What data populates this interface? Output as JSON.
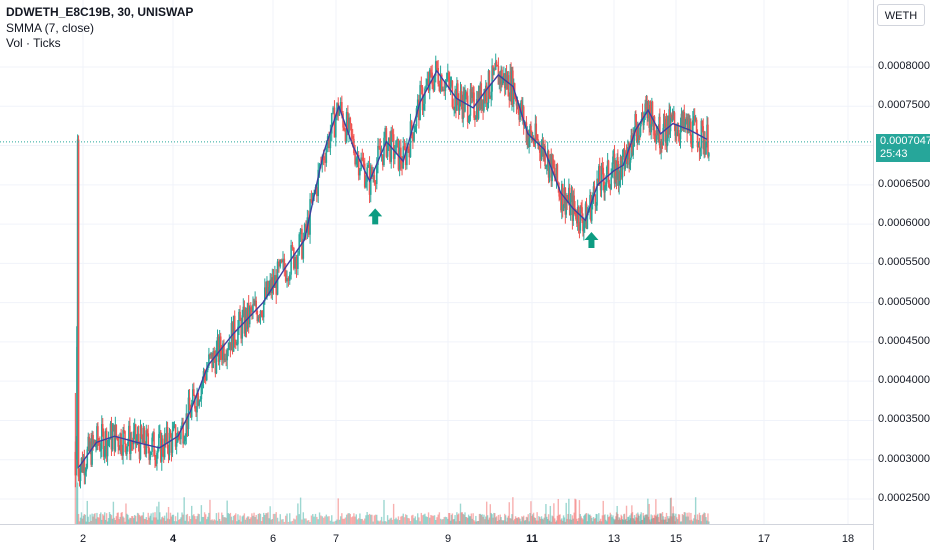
{
  "header": {
    "symbol_line": "DDWETH_E8C19B, 30, UNISWAP",
    "indicator_smma": "SMMA (7, close)",
    "indicator_vol": "Vol · Ticks",
    "pair_button": "WETH"
  },
  "colors": {
    "up": "#26a69a",
    "down": "#ef5350",
    "smma": "#3f3f9f",
    "grid": "#f0f3fa",
    "arrow": "#0d9c82"
  },
  "chart_data": {
    "type": "candlestick",
    "title": "DDWETH_E8C19B, 30, UNISWAP",
    "ylim": [
      0.000215,
      0.000865
    ],
    "y_ticks": [
      "0.0008000",
      "0.0007500",
      "0.0007000",
      "0.0006500",
      "0.0006000",
      "0.0005500",
      "0.0005000",
      "0.0004500",
      "0.0004000",
      "0.0003500",
      "0.0003000",
      "0.0002500"
    ],
    "x_ticks": [
      {
        "label": "2",
        "day": 2,
        "bold": false
      },
      {
        "label": "4",
        "day": 4,
        "bold": true
      },
      {
        "label": "6",
        "day": 6,
        "bold": false
      },
      {
        "label": "7",
        "day": 7,
        "bold": false
      },
      {
        "label": "9",
        "day": 9,
        "bold": false
      },
      {
        "label": "11",
        "day": 11,
        "bold": true
      },
      {
        "label": "13",
        "day": 13,
        "bold": false
      },
      {
        "label": "15",
        "day": 15,
        "bold": false
      },
      {
        "label": "17",
        "day": 17,
        "bold": false
      },
      {
        "label": "18",
        "day": 18,
        "bold": false
      }
    ],
    "last_price": "0.0007047",
    "countdown": "25:43",
    "smma": [
      [
        1.9,
        0.00029
      ],
      [
        2.3,
        0.000322
      ],
      [
        2.7,
        0.00033
      ],
      [
        3.2,
        0.000322
      ],
      [
        3.7,
        0.000315
      ],
      [
        4.1,
        0.00033
      ],
      [
        4.35,
        0.000362
      ],
      [
        4.7,
        0.00042
      ],
      [
        5.2,
        0.00046
      ],
      [
        5.8,
        0.0005
      ],
      [
        6.2,
        0.000545
      ],
      [
        6.5,
        0.00058
      ],
      [
        6.8,
        0.00069
      ],
      [
        7.05,
        0.00075
      ],
      [
        7.3,
        0.0007
      ],
      [
        7.6,
        0.000655
      ],
      [
        7.9,
        0.000705
      ],
      [
        8.2,
        0.00068
      ],
      [
        8.5,
        0.000755
      ],
      [
        8.8,
        0.000795
      ],
      [
        9.2,
        0.00076
      ],
      [
        9.6,
        0.000748
      ],
      [
        9.9,
        0.00077
      ],
      [
        10.2,
        0.00079
      ],
      [
        10.55,
        0.000775
      ],
      [
        10.9,
        0.000715
      ],
      [
        11.3,
        0.000695
      ],
      [
        11.7,
        0.00064
      ],
      [
        12.0,
        0.00062
      ],
      [
        12.3,
        0.000605
      ],
      [
        12.6,
        0.00065
      ],
      [
        13.0,
        0.000668
      ],
      [
        13.3,
        0.000675
      ],
      [
        13.7,
        0.00072
      ],
      [
        14.1,
        0.000745
      ],
      [
        14.5,
        0.000715
      ],
      [
        14.9,
        0.000728
      ],
      [
        15.3,
        0.00072
      ],
      [
        15.7,
        0.000708
      ]
    ],
    "series_anchor_lows": [
      [
        1.9,
        0.000272
      ],
      [
        2.3,
        0.000315
      ],
      [
        2.7,
        0.00032
      ],
      [
        3.2,
        0.000305
      ],
      [
        3.7,
        0.00031
      ],
      [
        4.1,
        0.000325
      ],
      [
        4.35,
        0.00035
      ],
      [
        4.7,
        0.0004
      ],
      [
        5.2,
        0.00044
      ],
      [
        5.8,
        0.00048
      ],
      [
        6.2,
        0.00053
      ],
      [
        6.5,
        0.000565
      ],
      [
        6.8,
        0.00065
      ],
      [
        7.05,
        0.000735
      ],
      [
        7.3,
        0.00069
      ],
      [
        7.6,
        0.00062
      ],
      [
        7.9,
        0.00069
      ],
      [
        8.2,
        0.00067
      ],
      [
        8.5,
        0.00073
      ],
      [
        8.8,
        0.000775
      ],
      [
        9.2,
        0.000735
      ],
      [
        9.6,
        0.000732
      ],
      [
        9.9,
        0.000755
      ],
      [
        10.2,
        0.000775
      ],
      [
        10.55,
        0.00076
      ],
      [
        10.9,
        0.00069
      ],
      [
        11.3,
        0.00068
      ],
      [
        11.7,
        0.00061
      ],
      [
        12.0,
        0.0006
      ],
      [
        12.3,
        0.000575
      ],
      [
        12.6,
        0.00064
      ],
      [
        13.0,
        0.00066
      ],
      [
        13.3,
        0.000665
      ],
      [
        13.7,
        0.0007
      ],
      [
        14.1,
        0.00073
      ],
      [
        14.5,
        0.0007
      ],
      [
        14.9,
        0.000715
      ],
      [
        15.3,
        0.0007
      ],
      [
        15.7,
        0.0007
      ]
    ],
    "markers": [
      {
        "x": 7.7,
        "y": 0.00062,
        "label": "buy-arrow"
      },
      {
        "x": 12.45,
        "y": 0.00059,
        "label": "buy-arrow"
      }
    ]
  }
}
